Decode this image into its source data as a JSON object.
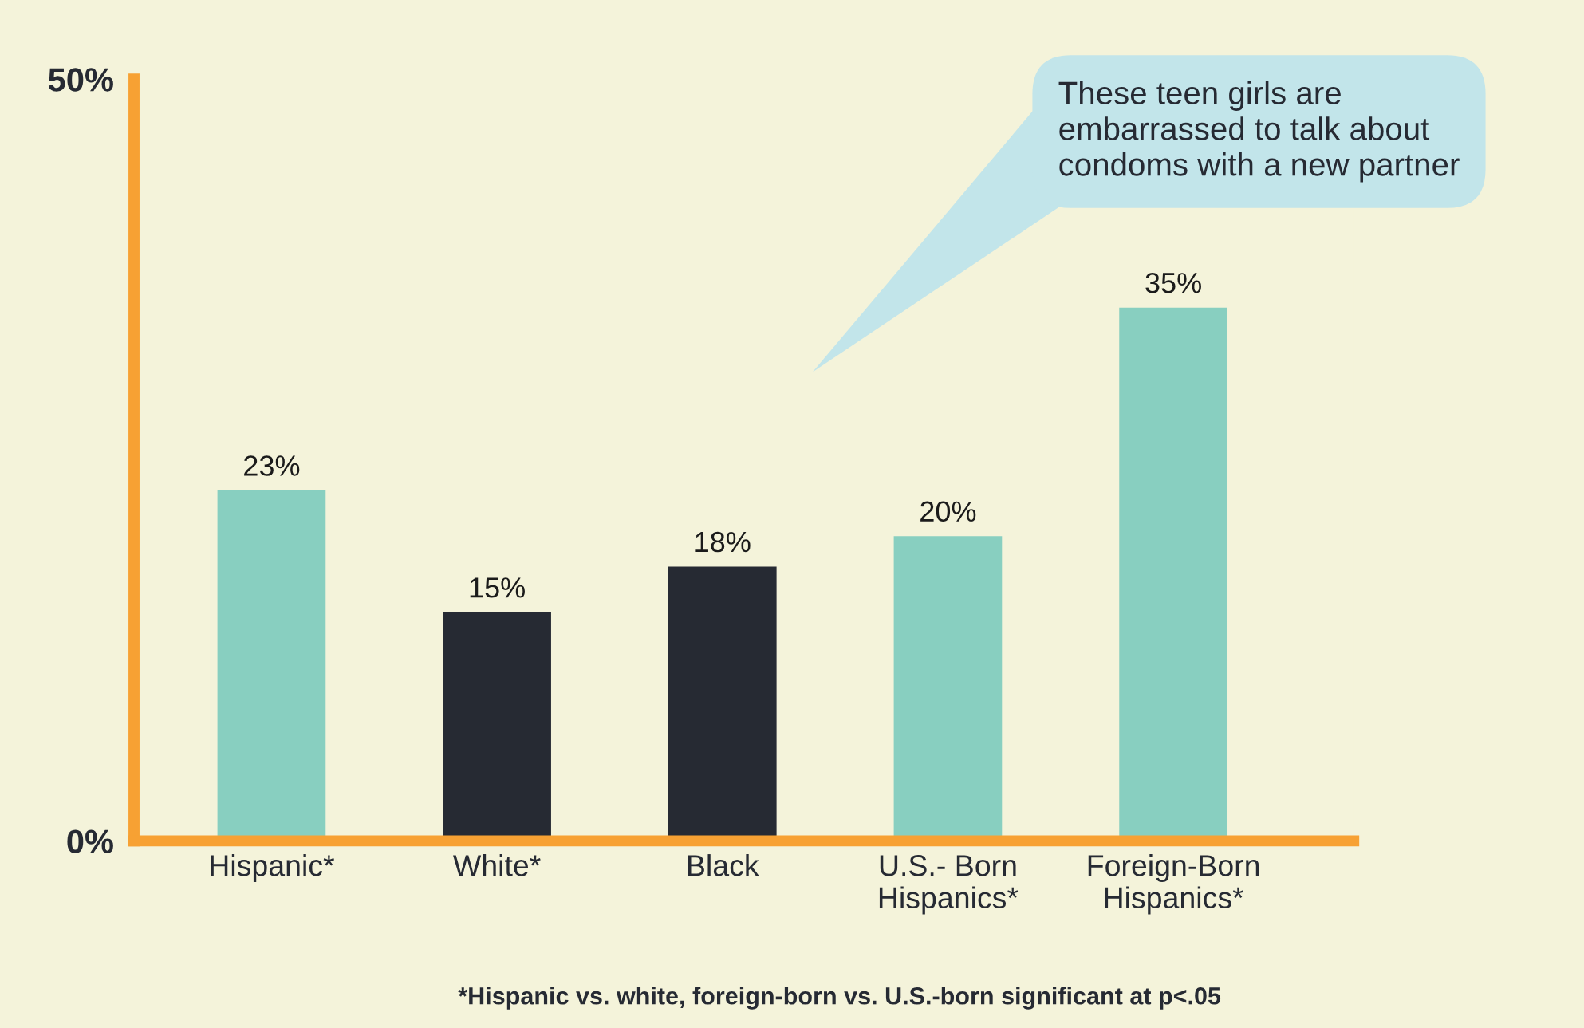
{
  "chart_data": {
    "type": "bar",
    "categories": [
      "Hispanic*",
      "White*",
      "Black",
      "U.S.- Born\nHispanics*",
      "Foreign-Born\nHispanics*"
    ],
    "values": [
      23,
      15,
      18,
      20,
      35
    ],
    "colors": [
      "#88cfc0",
      "#262a33",
      "#262a33",
      "#88cfc0",
      "#88cfc0"
    ],
    "value_labels": [
      "23%",
      "15%",
      "18%",
      "20%",
      "35%"
    ],
    "ylim": [
      0,
      50
    ],
    "yticks": [
      {
        "value": 0,
        "label": "0%"
      },
      {
        "value": 50,
        "label": "50%"
      }
    ],
    "annotations": [
      "These teen girls are\nembarrassed to talk about\ncondoms with a new partner",
      "*Hispanic vs. white, foreign-born vs. U.S.-born significant at p<.05"
    ],
    "grid": false,
    "legend": false
  }
}
